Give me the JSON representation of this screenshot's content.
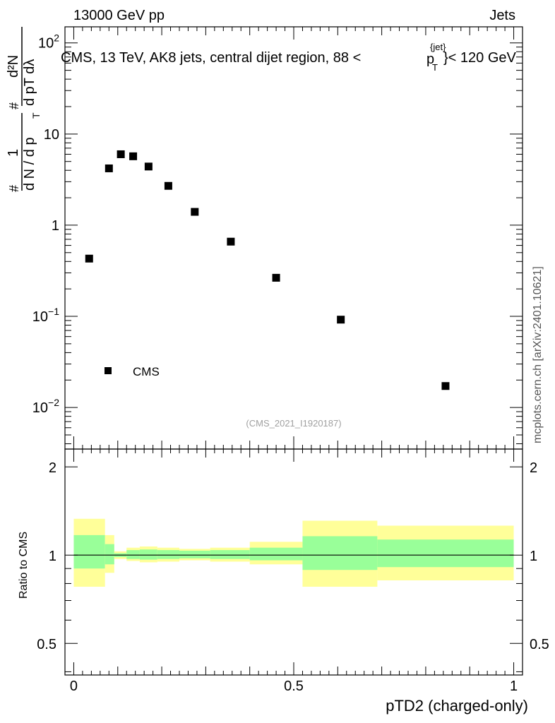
{
  "header": {
    "left": "13000 GeV pp",
    "right": "Jets"
  },
  "chart_data": [
    {
      "type": "scatter",
      "panel": "main",
      "title": "CMS, 13 TeV, AK8 jets, central dijet region, 88 <",
      "title_pt": "p",
      "title_sup": "{jet}",
      "title_sub": "T",
      "title_end": "}< 120 GeV",
      "ylabel_top": "d²N",
      "ylabel_mid": "d pT dλ",
      "ylabel_main": "1 / (dN / dpT)",
      "yscale": "log",
      "ylim": [
        0.0035,
        150
      ],
      "xlim": [
        -0.02,
        1.02
      ],
      "y_ticks": [
        {
          "value": 0.01,
          "base": "10",
          "exp": "−2"
        },
        {
          "value": 0.1,
          "base": "10",
          "exp": "−1"
        },
        {
          "value": 1,
          "label": "1"
        },
        {
          "value": 10,
          "label": "10"
        },
        {
          "value": 100,
          "base": "10",
          "exp": "2"
        }
      ],
      "series": [
        {
          "name": "CMS",
          "x": [
            0.035,
            0.08,
            0.107,
            0.135,
            0.17,
            0.215,
            0.275,
            0.357,
            0.46,
            0.607,
            0.845
          ],
          "y": [
            0.43,
            4.2,
            6.0,
            5.7,
            4.4,
            2.7,
            1.4,
            0.66,
            0.265,
            0.092,
            0.0172
          ]
        }
      ],
      "legend": {
        "label": "CMS",
        "position": "bottom-left"
      },
      "watermark": "(CMS_2021_I1920187)",
      "side_label": "mcplots.cern.ch [arXiv:2401.10621]"
    },
    {
      "type": "area",
      "panel": "ratio",
      "ylabel": "Ratio to CMS",
      "xlabel": "pTD2 (charged-only)",
      "ylim": [
        0.39,
        2.3
      ],
      "xlim": [
        -0.02,
        1.02
      ],
      "y_ticks": [
        {
          "value": 0.5,
          "label": "0.5"
        },
        {
          "value": 1,
          "label": "1"
        },
        {
          "value": 2,
          "label": "2"
        }
      ],
      "x_ticks": [
        {
          "value": 0,
          "label": "0"
        },
        {
          "value": 0.5,
          "label": "0.5"
        },
        {
          "value": 1,
          "label": "1"
        }
      ],
      "reference_line": 1,
      "bins": [
        {
          "lo": 0.0,
          "hi": 0.071,
          "stat_lo": 0.9,
          "stat_hi": 1.17,
          "tot_lo": 0.78,
          "tot_hi": 1.33
        },
        {
          "lo": 0.071,
          "hi": 0.092,
          "stat_lo": 0.93,
          "stat_hi": 1.09,
          "tot_lo": 0.87,
          "tot_hi": 1.17
        },
        {
          "lo": 0.092,
          "hi": 0.12,
          "stat_lo": 0.985,
          "stat_hi": 1.015,
          "tot_lo": 0.97,
          "tot_hi": 1.03
        },
        {
          "lo": 0.12,
          "hi": 0.15,
          "stat_lo": 0.97,
          "stat_hi": 1.04,
          "tot_lo": 0.955,
          "tot_hi": 1.06
        },
        {
          "lo": 0.15,
          "hi": 0.19,
          "stat_lo": 0.965,
          "stat_hi": 1.045,
          "tot_lo": 0.945,
          "tot_hi": 1.07
        },
        {
          "lo": 0.19,
          "hi": 0.24,
          "stat_lo": 0.97,
          "stat_hi": 1.04,
          "tot_lo": 0.95,
          "tot_hi": 1.06
        },
        {
          "lo": 0.24,
          "hi": 0.31,
          "stat_lo": 0.975,
          "stat_hi": 1.035,
          "tot_lo": 0.96,
          "tot_hi": 1.05
        },
        {
          "lo": 0.31,
          "hi": 0.4,
          "stat_lo": 0.97,
          "stat_hi": 1.04,
          "tot_lo": 0.95,
          "tot_hi": 1.06
        },
        {
          "lo": 0.4,
          "hi": 0.52,
          "stat_lo": 0.96,
          "stat_hi": 1.06,
          "tot_lo": 0.93,
          "tot_hi": 1.11
        },
        {
          "lo": 0.52,
          "hi": 0.69,
          "stat_lo": 0.89,
          "stat_hi": 1.16,
          "tot_lo": 0.78,
          "tot_hi": 1.31
        },
        {
          "lo": 0.69,
          "hi": 1.0,
          "stat_lo": 0.91,
          "stat_hi": 1.13,
          "tot_lo": 0.82,
          "tot_hi": 1.26
        }
      ],
      "colors": {
        "stat": "#99ff99",
        "total": "#ffff99"
      }
    }
  ]
}
